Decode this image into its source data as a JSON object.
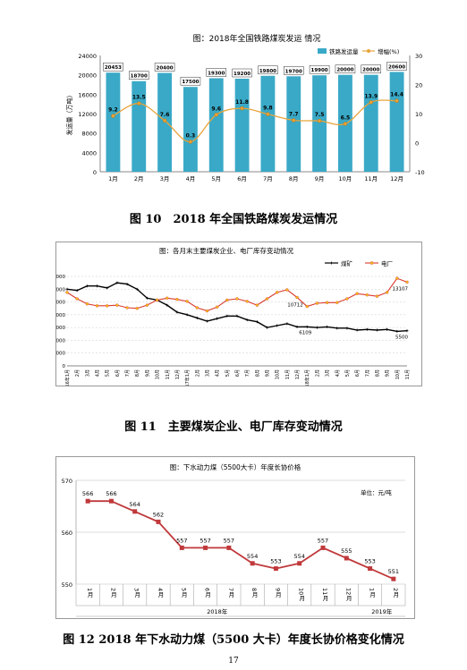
{
  "page_number": "17",
  "figures": [
    {
      "caption": "图 10　2018 年全国铁路煤炭发运情况"
    },
    {
      "caption": "图 11　主要煤炭企业、电厂库存变动情况"
    },
    {
      "caption": "图 12 2018 年下水动力煤（5500 大卡）年度长协价格变化情况"
    }
  ],
  "chart_data": [
    {
      "type": "bar",
      "title": "图：2018年全国铁路煤炭发运 情况",
      "ylabel": "发运量（万吨）",
      "categories": [
        "1月",
        "2月",
        "3月",
        "4月",
        "5月",
        "6月",
        "7月",
        "8月",
        "9月",
        "10月",
        "11月",
        "12月"
      ],
      "series": [
        {
          "name": "铁路发运量",
          "type": "bar",
          "values": [
            20453,
            18700,
            20400,
            17500,
            19300,
            19200,
            19800,
            19700,
            19900,
            20000,
            20000,
            20600
          ],
          "labels": [
            "20453",
            "18700",
            "20400",
            "17500",
            "19300",
            "19200",
            "19800",
            "19700",
            "19900",
            "20000",
            "20000",
            "20600"
          ]
        },
        {
          "name": "增幅(%)",
          "type": "line",
          "values": [
            9.2,
            13.5,
            7.6,
            0.3,
            9.6,
            11.8,
            9.8,
            7.7,
            7.5,
            6.5,
            13.9,
            14.4
          ],
          "labels": [
            "9.2",
            "13.5",
            "7.6",
            "0.3",
            "9.6",
            "11.8",
            "9.8",
            "7.7",
            "7.5",
            "6.5",
            "13.9",
            "14.4"
          ]
        }
      ],
      "ylim": [
        0,
        24000
      ],
      "yticks": [
        "0",
        "4000",
        "8000",
        "12000",
        "16000",
        "20000",
        "24000"
      ],
      "y2lim": [
        -10,
        30
      ],
      "y2ticks": [
        "-10",
        "0",
        "10",
        "20",
        "30"
      ],
      "colors": {
        "bar": "#3aa9c7",
        "line": "#e8a33a",
        "marker": "#e8a33a"
      },
      "legend": "top-right"
    },
    {
      "type": "line",
      "title": "图：各月末主要煤炭企业、电厂库存变动情况",
      "x": [
        "2016年1月",
        "2月",
        "3月",
        "4月",
        "5月",
        "6月",
        "7月",
        "8月",
        "9月",
        "10月",
        "11月",
        "12月",
        "2017年1月",
        "2月",
        "3月",
        "4月",
        "5月",
        "6月",
        "7月",
        "8月",
        "9月",
        "10月",
        "11月",
        "12月",
        "2018年1月",
        "2月",
        "3月",
        "4月",
        "5月",
        "6月",
        "7月",
        "8月",
        "9月",
        "10月",
        "11月"
      ],
      "series": [
        {
          "name": "煤矿",
          "color": "#000000",
          "values": [
            12000,
            11800,
            12500,
            12500,
            12200,
            13000,
            12800,
            12000,
            10600,
            10300,
            9500,
            8400,
            8000,
            7500,
            7000,
            7400,
            7800,
            7800,
            7200,
            6900,
            6000,
            6300,
            6600,
            6100,
            6109,
            6000,
            6100,
            5900,
            5900,
            5600,
            5700,
            5600,
            5700,
            5400,
            5500
          ]
        },
        {
          "name": "电厂",
          "color": "#d93a2b",
          "values": [
            11500,
            10500,
            9700,
            9400,
            9400,
            9500,
            9100,
            9000,
            9500,
            10300,
            10600,
            10400,
            10100,
            9100,
            8600,
            9200,
            10300,
            10500,
            10100,
            9500,
            10500,
            11500,
            11900,
            10712,
            9300,
            9800,
            9900,
            9900,
            10500,
            11300,
            11100,
            10900,
            11500,
            13700,
            13107
          ]
        }
      ],
      "annotations": [
        "10712",
        "6109",
        "13107",
        "5500"
      ],
      "ylim": [
        0,
        14000
      ],
      "yticks": [
        "0",
        "2000",
        "4000",
        "6000",
        "8000",
        "10000",
        "12000",
        "14000"
      ],
      "legend": "top-right"
    },
    {
      "type": "line",
      "title": "图：下水动力煤（5500大卡）年度长协价格",
      "unit": "单位：元/吨",
      "categories": [
        "1月",
        "2月",
        "3月",
        "4月",
        "5月",
        "6月",
        "7月",
        "8月",
        "9月",
        "10月",
        "11月",
        "12月",
        "1月",
        "2月"
      ],
      "year_labels": [
        "2018年",
        "2019年"
      ],
      "values": [
        566,
        566,
        564,
        562,
        557,
        557,
        557,
        554,
        553,
        554,
        557,
        555,
        553,
        551
      ],
      "labels": [
        "566",
        "566",
        "564",
        "562",
        "557",
        "557",
        "557",
        "554",
        "553",
        "554",
        "557",
        "555",
        "553",
        "551"
      ],
      "ylim": [
        550,
        570
      ],
      "yticks": [
        "550",
        "560",
        "570"
      ],
      "color": "#c0393b"
    }
  ]
}
